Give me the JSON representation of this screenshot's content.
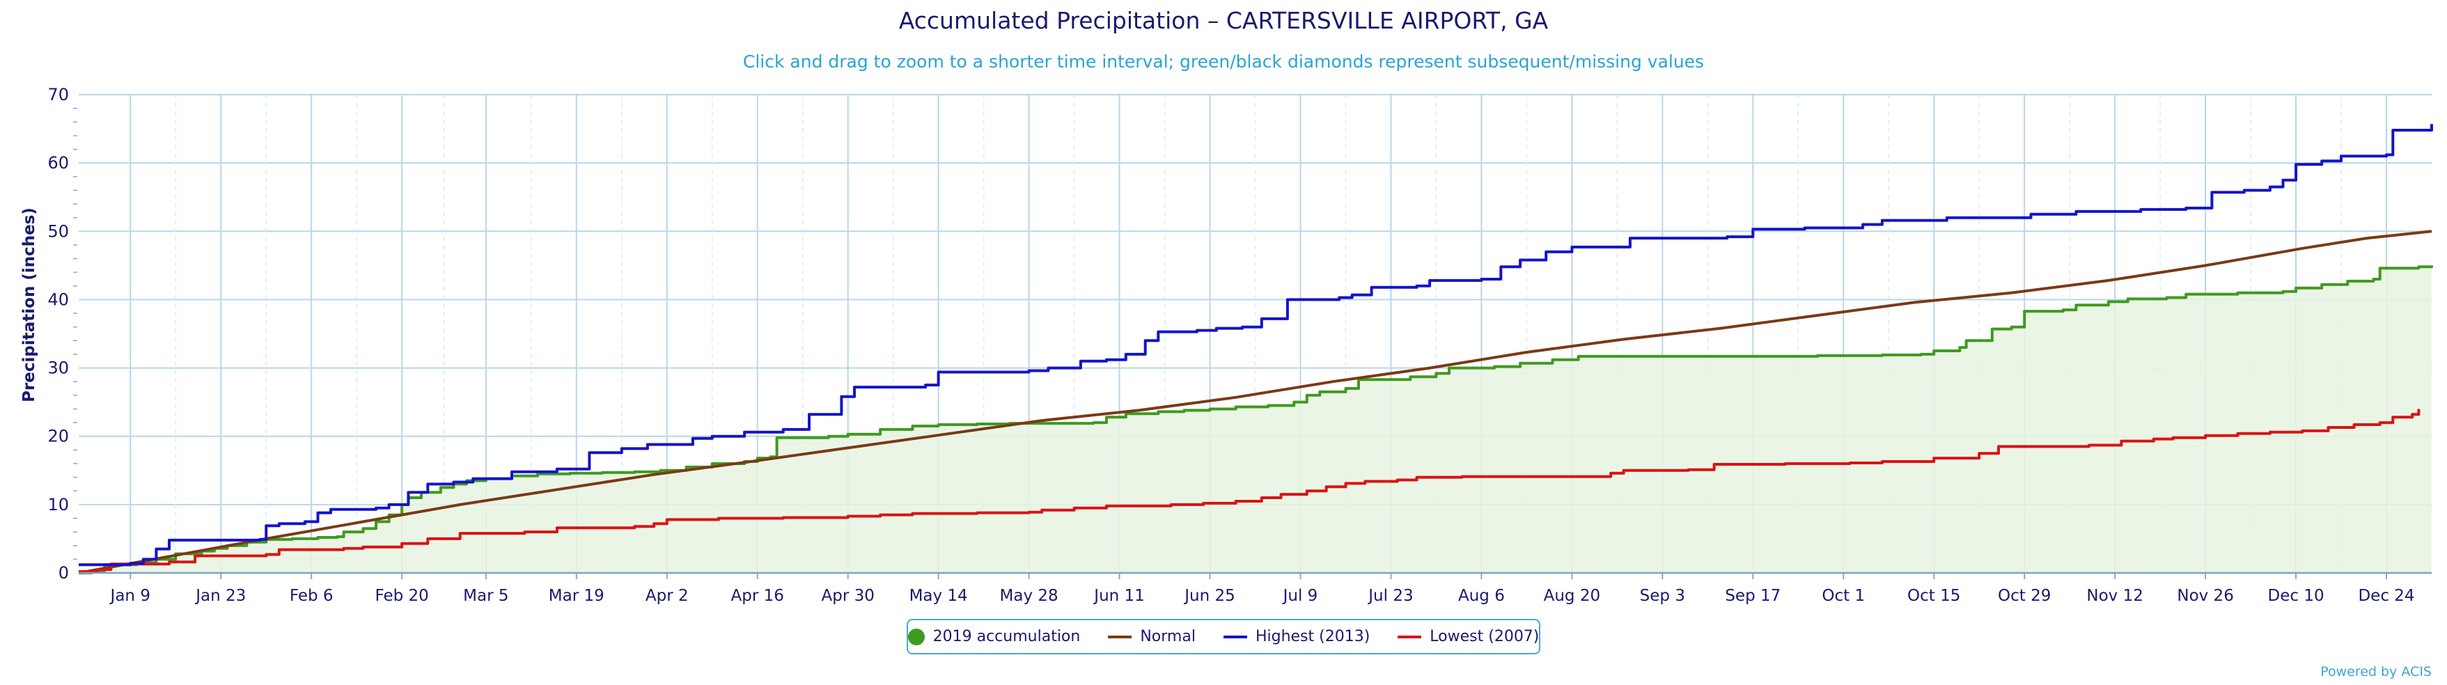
{
  "chart_data": {
    "type": "line",
    "title": "Accumulated Precipitation – CARTERSVILLE AIRPORT, GA",
    "subtitle": "Click and drag to zoom to a shorter time interval; green/black diamonds represent subsequent/missing values",
    "ylabel": "Precipitation (inches)",
    "xlabel": "",
    "ylim": [
      0,
      70
    ],
    "yticks": [
      0,
      10,
      20,
      30,
      40,
      50,
      60,
      70
    ],
    "xlim": [
      1,
      365
    ],
    "xticks": [
      {
        "day": 9,
        "label": "Jan 9"
      },
      {
        "day": 23,
        "label": "Jan 23"
      },
      {
        "day": 37,
        "label": "Feb 6"
      },
      {
        "day": 51,
        "label": "Feb 20"
      },
      {
        "day": 64,
        "label": "Mar 5"
      },
      {
        "day": 78,
        "label": "Mar 19"
      },
      {
        "day": 92,
        "label": "Apr 2"
      },
      {
        "day": 106,
        "label": "Apr 16"
      },
      {
        "day": 120,
        "label": "Apr 30"
      },
      {
        "day": 134,
        "label": "May 14"
      },
      {
        "day": 148,
        "label": "May 28"
      },
      {
        "day": 162,
        "label": "Jun 11"
      },
      {
        "day": 176,
        "label": "Jun 25"
      },
      {
        "day": 190,
        "label": "Jul 9"
      },
      {
        "day": 204,
        "label": "Jul 23"
      },
      {
        "day": 218,
        "label": "Aug 6"
      },
      {
        "day": 232,
        "label": "Aug 20"
      },
      {
        "day": 246,
        "label": "Sep 3"
      },
      {
        "day": 260,
        "label": "Sep 17"
      },
      {
        "day": 274,
        "label": "Oct 1"
      },
      {
        "day": 288,
        "label": "Oct 15"
      },
      {
        "day": 302,
        "label": "Oct 29"
      },
      {
        "day": 316,
        "label": "Nov 12"
      },
      {
        "day": 330,
        "label": "Nov 26"
      },
      {
        "day": 344,
        "label": "Dec 10"
      },
      {
        "day": 358,
        "label": "Dec 24"
      }
    ],
    "grid": true,
    "legend_position": "bottom-center",
    "series": [
      {
        "name": "2019 accumulation",
        "color": "#3f9a1e",
        "style": "step-area",
        "points": [
          [
            1,
            0
          ],
          [
            3,
            0.3
          ],
          [
            5,
            1.2
          ],
          [
            10,
            1.5
          ],
          [
            13,
            2.0
          ],
          [
            16,
            2.8
          ],
          [
            20,
            3.2
          ],
          [
            22,
            3.6
          ],
          [
            24,
            4.0
          ],
          [
            27,
            4.5
          ],
          [
            30,
            4.9
          ],
          [
            34,
            5.0
          ],
          [
            38,
            5.2
          ],
          [
            41,
            5.3
          ],
          [
            42,
            6.0
          ],
          [
            45,
            6.5
          ],
          [
            47,
            7.5
          ],
          [
            49,
            8.5
          ],
          [
            51,
            10.0
          ],
          [
            52,
            11.0
          ],
          [
            54,
            11.8
          ],
          [
            57,
            12.5
          ],
          [
            59,
            13.0
          ],
          [
            61,
            13.5
          ],
          [
            64,
            13.8
          ],
          [
            68,
            14.2
          ],
          [
            72,
            14.5
          ],
          [
            77,
            14.6
          ],
          [
            82,
            14.7
          ],
          [
            87,
            14.8
          ],
          [
            91,
            15.0
          ],
          [
            95,
            15.5
          ],
          [
            99,
            16.0
          ],
          [
            104,
            16.3
          ],
          [
            106,
            16.8
          ],
          [
            108,
            17.0
          ],
          [
            109,
            19.8
          ],
          [
            117,
            20.0
          ],
          [
            120,
            20.3
          ],
          [
            125,
            21.0
          ],
          [
            130,
            21.5
          ],
          [
            134,
            21.7
          ],
          [
            140,
            21.8
          ],
          [
            145,
            21.9
          ],
          [
            152,
            21.9
          ],
          [
            158,
            22.0
          ],
          [
            160,
            22.8
          ],
          [
            163,
            23.3
          ],
          [
            168,
            23.6
          ],
          [
            172,
            23.8
          ],
          [
            176,
            24.0
          ],
          [
            180,
            24.3
          ],
          [
            185,
            24.5
          ],
          [
            189,
            25.0
          ],
          [
            191,
            26.0
          ],
          [
            193,
            26.5
          ],
          [
            197,
            27.0
          ],
          [
            199,
            28.3
          ],
          [
            207,
            28.7
          ],
          [
            211,
            29.2
          ],
          [
            213,
            30.0
          ],
          [
            220,
            30.2
          ],
          [
            224,
            30.7
          ],
          [
            229,
            31.2
          ],
          [
            233,
            31.7
          ],
          [
            240,
            31.7
          ],
          [
            250,
            31.7
          ],
          [
            260,
            31.7
          ],
          [
            270,
            31.8
          ],
          [
            280,
            31.9
          ],
          [
            286,
            32.0
          ],
          [
            288,
            32.5
          ],
          [
            292,
            33.0
          ],
          [
            293,
            34.0
          ],
          [
            297,
            35.7
          ],
          [
            300,
            36.0
          ],
          [
            302,
            38.3
          ],
          [
            308,
            38.5
          ],
          [
            310,
            39.2
          ],
          [
            315,
            39.7
          ],
          [
            318,
            40.1
          ],
          [
            324,
            40.3
          ],
          [
            327,
            40.8
          ],
          [
            335,
            41.0
          ],
          [
            342,
            41.2
          ],
          [
            344,
            41.7
          ],
          [
            348,
            42.2
          ],
          [
            352,
            42.7
          ],
          [
            356,
            43.0
          ],
          [
            357,
            44.6
          ],
          [
            363,
            44.8
          ],
          [
            365,
            45.0
          ]
        ]
      },
      {
        "name": "Normal",
        "color": "#7a3a14",
        "style": "line",
        "points": [
          [
            1,
            0
          ],
          [
            15,
            2.4
          ],
          [
            30,
            5.0
          ],
          [
            45,
            7.5
          ],
          [
            60,
            10.0
          ],
          [
            75,
            12.2
          ],
          [
            90,
            14.4
          ],
          [
            105,
            16.3
          ],
          [
            120,
            18.3
          ],
          [
            135,
            20.3
          ],
          [
            150,
            22.3
          ],
          [
            165,
            23.8
          ],
          [
            180,
            25.7
          ],
          [
            195,
            28.0
          ],
          [
            210,
            30.0
          ],
          [
            225,
            32.3
          ],
          [
            240,
            34.2
          ],
          [
            255,
            35.8
          ],
          [
            270,
            37.7
          ],
          [
            285,
            39.6
          ],
          [
            300,
            41.0
          ],
          [
            315,
            42.8
          ],
          [
            330,
            45.0
          ],
          [
            345,
            47.5
          ],
          [
            355,
            49.0
          ],
          [
            365,
            50.0
          ]
        ]
      },
      {
        "name": "Highest (2013)",
        "color": "#1414c8",
        "style": "step",
        "points": [
          [
            1,
            1.2
          ],
          [
            9,
            1.4
          ],
          [
            11,
            2.0
          ],
          [
            13,
            3.5
          ],
          [
            15,
            4.8
          ],
          [
            29,
            4.9
          ],
          [
            30,
            6.9
          ],
          [
            32,
            7.2
          ],
          [
            36,
            7.5
          ],
          [
            38,
            8.8
          ],
          [
            40,
            9.3
          ],
          [
            47,
            9.5
          ],
          [
            49,
            10.0
          ],
          [
            52,
            11.8
          ],
          [
            55,
            13.0
          ],
          [
            59,
            13.3
          ],
          [
            62,
            13.8
          ],
          [
            68,
            14.8
          ],
          [
            75,
            15.2
          ],
          [
            80,
            17.6
          ],
          [
            85,
            18.2
          ],
          [
            89,
            18.8
          ],
          [
            96,
            19.7
          ],
          [
            99,
            20.0
          ],
          [
            104,
            20.6
          ],
          [
            110,
            21.0
          ],
          [
            114,
            23.2
          ],
          [
            119,
            25.8
          ],
          [
            121,
            27.2
          ],
          [
            132,
            27.5
          ],
          [
            134,
            29.4
          ],
          [
            148,
            29.6
          ],
          [
            151,
            30.0
          ],
          [
            156,
            31.0
          ],
          [
            160,
            31.2
          ],
          [
            163,
            32.0
          ],
          [
            166,
            34.0
          ],
          [
            168,
            35.3
          ],
          [
            174,
            35.5
          ],
          [
            177,
            35.8
          ],
          [
            181,
            36.0
          ],
          [
            184,
            37.2
          ],
          [
            188,
            40.0
          ],
          [
            196,
            40.3
          ],
          [
            198,
            40.7
          ],
          [
            201,
            41.8
          ],
          [
            208,
            42.0
          ],
          [
            210,
            42.8
          ],
          [
            218,
            43.0
          ],
          [
            221,
            44.8
          ],
          [
            224,
            45.8
          ],
          [
            228,
            47.0
          ],
          [
            232,
            47.7
          ],
          [
            241,
            49.0
          ],
          [
            256,
            49.2
          ],
          [
            260,
            50.3
          ],
          [
            268,
            50.5
          ],
          [
            277,
            51.0
          ],
          [
            280,
            51.6
          ],
          [
            290,
            52.0
          ],
          [
            303,
            52.5
          ],
          [
            310,
            52.9
          ],
          [
            320,
            53.2
          ],
          [
            327,
            53.4
          ],
          [
            331,
            55.7
          ],
          [
            336,
            56.0
          ],
          [
            340,
            56.5
          ],
          [
            342,
            57.5
          ],
          [
            344,
            59.8
          ],
          [
            348,
            60.3
          ],
          [
            351,
            61.0
          ],
          [
            358,
            61.2
          ],
          [
            359,
            64.8
          ],
          [
            365,
            65.7
          ]
        ]
      },
      {
        "name": "Lowest (2007)",
        "color": "#d81414",
        "style": "step",
        "points": [
          [
            1,
            0.2
          ],
          [
            4,
            0.5
          ],
          [
            6,
            1.3
          ],
          [
            15,
            1.6
          ],
          [
            19,
            2.5
          ],
          [
            30,
            2.7
          ],
          [
            32,
            3.4
          ],
          [
            42,
            3.6
          ],
          [
            45,
            3.8
          ],
          [
            51,
            4.3
          ],
          [
            55,
            5.0
          ],
          [
            60,
            5.8
          ],
          [
            70,
            6.0
          ],
          [
            75,
            6.6
          ],
          [
            87,
            6.8
          ],
          [
            90,
            7.2
          ],
          [
            92,
            7.8
          ],
          [
            100,
            8.0
          ],
          [
            110,
            8.1
          ],
          [
            120,
            8.3
          ],
          [
            125,
            8.5
          ],
          [
            130,
            8.7
          ],
          [
            140,
            8.8
          ],
          [
            148,
            8.9
          ],
          [
            150,
            9.2
          ],
          [
            155,
            9.5
          ],
          [
            160,
            9.8
          ],
          [
            170,
            10.0
          ],
          [
            175,
            10.2
          ],
          [
            180,
            10.5
          ],
          [
            184,
            11.0
          ],
          [
            187,
            11.5
          ],
          [
            191,
            12.0
          ],
          [
            194,
            12.6
          ],
          [
            197,
            13.1
          ],
          [
            200,
            13.4
          ],
          [
            205,
            13.6
          ],
          [
            208,
            14.0
          ],
          [
            215,
            14.1
          ],
          [
            225,
            14.1
          ],
          [
            234,
            14.1
          ],
          [
            238,
            14.6
          ],
          [
            240,
            15.0
          ],
          [
            250,
            15.1
          ],
          [
            254,
            15.9
          ],
          [
            265,
            16.0
          ],
          [
            275,
            16.1
          ],
          [
            280,
            16.3
          ],
          [
            288,
            16.8
          ],
          [
            295,
            17.5
          ],
          [
            298,
            18.5
          ],
          [
            312,
            18.7
          ],
          [
            317,
            19.3
          ],
          [
            322,
            19.6
          ],
          [
            325,
            19.8
          ],
          [
            330,
            20.1
          ],
          [
            335,
            20.4
          ],
          [
            340,
            20.6
          ],
          [
            345,
            20.8
          ],
          [
            349,
            21.3
          ],
          [
            353,
            21.7
          ],
          [
            357,
            22.0
          ],
          [
            359,
            22.8
          ],
          [
            362,
            23.2
          ],
          [
            363,
            24.0
          ]
        ]
      }
    ],
    "legend": [
      {
        "label": "2019 accumulation",
        "marker": "dot",
        "color": "#3f9a1e"
      },
      {
        "label": "Normal",
        "marker": "line",
        "color": "#7a3a14"
      },
      {
        "label": "Highest (2013)",
        "marker": "line",
        "color": "#1414c8"
      },
      {
        "label": "Lowest (2007)",
        "marker": "line",
        "color": "#d81414"
      }
    ],
    "credits": "Powered by ACIS"
  }
}
